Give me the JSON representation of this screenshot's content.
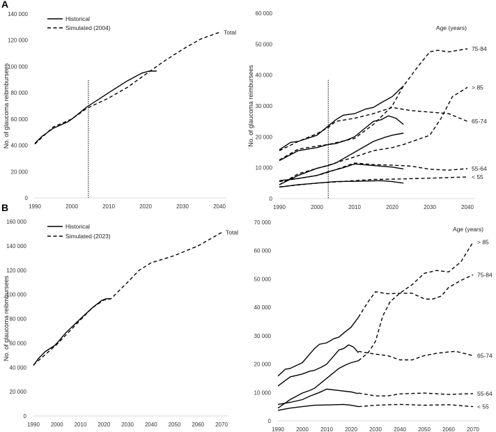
{
  "chart_data": [
    {
      "panel": "A",
      "type": "line",
      "ylabel": "No. of glaucoma reibmbursees",
      "xlim": [
        1990,
        2040
      ],
      "ylim": [
        0,
        140000
      ],
      "yticks": [
        0,
        20000,
        40000,
        60000,
        80000,
        100000,
        120000,
        140000
      ],
      "xticks": [
        1990,
        2000,
        2010,
        2020,
        2030,
        2040
      ],
      "vline": 2004.5,
      "legend": {
        "placement": "top-left",
        "entries": [
          {
            "name": "Historical",
            "style": "solid"
          },
          {
            "name": "Simulated (2004)",
            "style": "dashed"
          }
        ]
      },
      "series": [
        {
          "name": "Historical",
          "style": "solid",
          "label": "",
          "x": [
            1990,
            1992,
            1995,
            1999,
            2000,
            2004,
            2010,
            2015,
            2019,
            2021,
            2023
          ],
          "y": [
            41500,
            47000,
            53000,
            58000,
            60000,
            69000,
            80000,
            89000,
            95000,
            96500,
            96500
          ]
        },
        {
          "name": "Simulated (2004)",
          "style": "dashed",
          "label": "Total",
          "x": [
            1990,
            1995,
            2000,
            2004,
            2010,
            2015,
            2020,
            2025,
            2030,
            2035,
            2040
          ],
          "y": [
            41000,
            54000,
            60000,
            68000,
            76000,
            84000,
            94000,
            104000,
            113000,
            121000,
            126000
          ]
        }
      ]
    },
    {
      "panel": "A-age",
      "type": "line",
      "ylabel": "No. of  glaucoma reimbursees",
      "legend_title": "Age (years)",
      "xlim": [
        1990,
        2040
      ],
      "ylim": [
        0,
        60000
      ],
      "yticks": [
        0,
        10000,
        20000,
        30000,
        40000,
        50000,
        60000
      ],
      "xticks": [
        1990,
        2000,
        2010,
        2020,
        2030,
        2040
      ],
      "vline": 2003,
      "series": [
        {
          "style": "solid",
          "label": "",
          "x": [
            1990,
            1993,
            1995,
            2000,
            2003,
            2005,
            2007,
            2010,
            2013,
            2015,
            2017,
            2020,
            2023
          ],
          "y": [
            15800,
            18200,
            18500,
            20500,
            23500,
            25500,
            27000,
            27500,
            29000,
            29500,
            31000,
            33000,
            36500
          ]
        },
        {
          "style": "solid",
          "label": "",
          "x": [
            1990,
            1995,
            2000,
            2003,
            2005,
            2008,
            2010,
            2013,
            2015,
            2017,
            2019,
            2021,
            2023
          ],
          "y": [
            12300,
            15500,
            16500,
            17500,
            17800,
            19000,
            20000,
            23000,
            25000,
            25500,
            26800,
            26000,
            24000
          ]
        },
        {
          "style": "solid",
          "label": "",
          "x": [
            1990,
            1995,
            2000,
            2003,
            2005,
            2010,
            2015,
            2018,
            2020,
            2023
          ],
          "y": [
            4500,
            7500,
            9800,
            10700,
            11500,
            15000,
            18500,
            19800,
            20500,
            21200
          ]
        },
        {
          "style": "solid",
          "label": "",
          "x": [
            1990,
            1995,
            2000,
            2003,
            2007,
            2010,
            2015,
            2020,
            2023
          ],
          "y": [
            5800,
            6500,
            7500,
            8700,
            10000,
            11200,
            10700,
            10200,
            9600
          ]
        },
        {
          "style": "solid",
          "label": "",
          "x": [
            1990,
            1995,
            2000,
            2005,
            2010,
            2017,
            2020,
            2023
          ],
          "y": [
            3700,
            4500,
            5000,
            5500,
            5600,
            5800,
            5500,
            5000
          ]
        },
        {
          "style": "dashed",
          "label": "75-84",
          "x": [
            1990,
            1995,
            2000,
            2003,
            2010,
            2015,
            2020,
            2023,
            2027,
            2030,
            2032,
            2035,
            2040
          ],
          "y": [
            12500,
            16000,
            17000,
            17500,
            19500,
            24000,
            30000,
            36500,
            43000,
            47500,
            48000,
            47500,
            48500
          ]
        },
        {
          "style": "dashed",
          "label": "65-74",
          "x": [
            1990,
            1995,
            2000,
            2003,
            2005,
            2010,
            2015,
            2020,
            2025,
            2030,
            2035,
            2040
          ],
          "y": [
            15500,
            18500,
            21000,
            23000,
            25000,
            26000,
            27500,
            29500,
            28500,
            28000,
            27500,
            25000
          ]
        },
        {
          "style": "dashed",
          "label": "> 85",
          "x": [
            1990,
            1995,
            2000,
            2003,
            2010,
            2015,
            2020,
            2023,
            2030,
            2033,
            2036,
            2040
          ],
          "y": [
            4500,
            8000,
            9800,
            10800,
            13500,
            15500,
            16500,
            17500,
            20500,
            26000,
            33000,
            36000
          ]
        },
        {
          "style": "dashed",
          "label": "55-64",
          "x": [
            1990,
            1995,
            2000,
            2003,
            2010,
            2015,
            2020,
            2025,
            2030,
            2035,
            2040
          ],
          "y": [
            5500,
            6500,
            7500,
            8500,
            11500,
            11000,
            10800,
            10500,
            9500,
            9200,
            9700
          ]
        },
        {
          "style": "dashed",
          "label": "< 55",
          "x": [
            1990,
            2000,
            2010,
            2015,
            2020,
            2030,
            2040
          ],
          "y": [
            3800,
            5000,
            5800,
            6200,
            6300,
            6600,
            7000
          ]
        }
      ]
    },
    {
      "panel": "B",
      "type": "line",
      "ylabel": "No. of glaucoma reibmbursees",
      "xlim": [
        1990,
        2070
      ],
      "ylim": [
        0,
        160000
      ],
      "yticks": [
        0,
        20000,
        40000,
        60000,
        80000,
        100000,
        120000,
        140000,
        160000
      ],
      "xticks": [
        1990,
        2000,
        2010,
        2020,
        2030,
        2040,
        2050,
        2060,
        2070
      ],
      "legend": {
        "placement": "top-left",
        "entries": [
          {
            "name": "Historical",
            "style": "solid"
          },
          {
            "name": "Simulated (2023)",
            "style": "dashed"
          }
        ]
      },
      "series": [
        {
          "name": "Historical",
          "style": "solid",
          "label": "",
          "x": [
            1990,
            1992,
            1995,
            1999,
            2000,
            2004,
            2010,
            2015,
            2019,
            2021,
            2023
          ],
          "y": [
            41500,
            47000,
            53000,
            58000,
            60000,
            69000,
            80000,
            89000,
            95000,
            96500,
            96500
          ]
        },
        {
          "name": "Simulated (2023)",
          "style": "dashed",
          "label": "Total",
          "x": [
            1990,
            2000,
            2010,
            2015,
            2020,
            2023,
            2030,
            2035,
            2040,
            2050,
            2060,
            2070
          ],
          "y": [
            42000,
            59000,
            79000,
            89000,
            95500,
            96500,
            110000,
            120000,
            126000,
            132000,
            140000,
            151000
          ]
        }
      ]
    },
    {
      "panel": "B-age",
      "type": "line",
      "ylabel": "",
      "legend_title": "Age (years)",
      "xlim": [
        1990,
        2070
      ],
      "ylim": [
        0,
        70000
      ],
      "yticks": [
        0,
        10000,
        20000,
        30000,
        40000,
        50000,
        60000,
        70000
      ],
      "xticks": [
        1990,
        2000,
        2010,
        2020,
        2030,
        2040,
        2050,
        2060,
        2070
      ],
      "series": [
        {
          "style": "solid",
          "label": "",
          "x": [
            1990,
            1993,
            1995,
            2000,
            2003,
            2005,
            2007,
            2010,
            2013,
            2015,
            2017,
            2020,
            2023
          ],
          "y": [
            15800,
            18200,
            18500,
            20500,
            23500,
            25500,
            27000,
            27500,
            29000,
            29500,
            31000,
            33000,
            36500
          ]
        },
        {
          "style": "solid",
          "label": "",
          "x": [
            1990,
            1995,
            2000,
            2003,
            2005,
            2008,
            2010,
            2013,
            2015,
            2017,
            2019,
            2021,
            2023
          ],
          "y": [
            12300,
            15500,
            16500,
            17500,
            17800,
            19000,
            20000,
            23000,
            25000,
            25500,
            26800,
            26000,
            24000
          ]
        },
        {
          "style": "solid",
          "label": "",
          "x": [
            1990,
            1995,
            2000,
            2003,
            2005,
            2010,
            2015,
            2018,
            2020,
            2023
          ],
          "y": [
            4500,
            7500,
            9800,
            10700,
            11500,
            15000,
            18500,
            19800,
            20500,
            21200
          ]
        },
        {
          "style": "solid",
          "label": "",
          "x": [
            1990,
            1995,
            2000,
            2003,
            2007,
            2010,
            2015,
            2020,
            2023
          ],
          "y": [
            5800,
            6500,
            7500,
            8700,
            10000,
            11200,
            10700,
            10200,
            9600
          ]
        },
        {
          "style": "solid",
          "label": "",
          "x": [
            1990,
            1995,
            2000,
            2005,
            2010,
            2017,
            2020,
            2023
          ],
          "y": [
            3700,
            4500,
            5000,
            5500,
            5600,
            5800,
            5500,
            5000
          ]
        },
        {
          "style": "dashed",
          "label": "> 85",
          "x": [
            2023,
            2027,
            2030,
            2033,
            2036,
            2040,
            2045,
            2050,
            2055,
            2060,
            2065,
            2070
          ],
          "y": [
            21200,
            24000,
            28000,
            37000,
            42000,
            45000,
            48000,
            52000,
            53000,
            52500,
            56000,
            63000
          ]
        },
        {
          "style": "dashed",
          "label": "75-84",
          "x": [
            2023,
            2027,
            2030,
            2035,
            2040,
            2045,
            2050,
            2053,
            2057,
            2060,
            2065,
            2070
          ],
          "y": [
            36500,
            42000,
            45500,
            44800,
            45000,
            45000,
            43000,
            42800,
            44000,
            47000,
            49500,
            51500
          ]
        },
        {
          "style": "dashed",
          "label": "65-74",
          "x": [
            2023,
            2030,
            2035,
            2040,
            2045,
            2050,
            2055,
            2060,
            2063,
            2070
          ],
          "y": [
            24500,
            23500,
            23000,
            21500,
            21500,
            23000,
            23800,
            24300,
            24500,
            23000
          ]
        },
        {
          "style": "dashed",
          "label": "55-64",
          "x": [
            2023,
            2030,
            2035,
            2040,
            2050,
            2060,
            2070
          ],
          "y": [
            9800,
            8800,
            8800,
            9500,
            9800,
            9300,
            9600
          ]
        },
        {
          "style": "dashed",
          "label": "< 55",
          "x": [
            2023,
            2030,
            2040,
            2050,
            2060,
            2070
          ],
          "y": [
            5000,
            5500,
            5800,
            5500,
            5700,
            5000
          ]
        }
      ]
    }
  ],
  "panel_letters": [
    "A",
    "B"
  ]
}
